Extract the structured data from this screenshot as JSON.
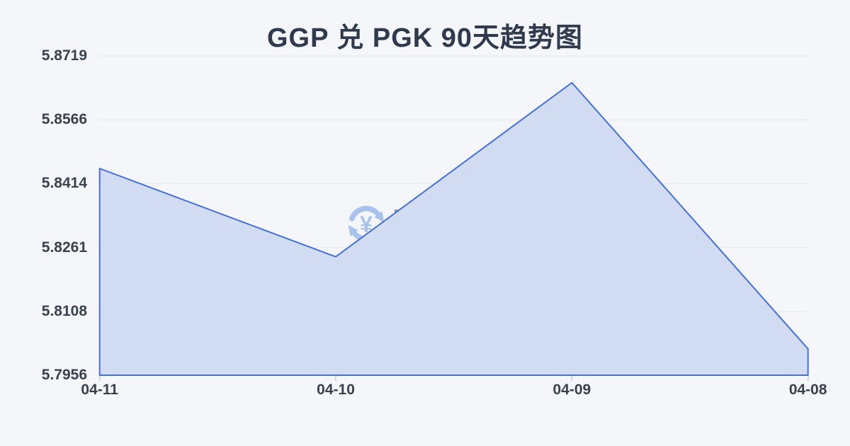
{
  "page": {
    "background_color": "#f4f6f9"
  },
  "chart_data": {
    "type": "area",
    "title": "GGP 兑 PGK 90天趋势图",
    "categories": [
      "04-11",
      "04-10",
      "04-09",
      "04-08"
    ],
    "values": [
      5.845,
      5.8239,
      5.8655,
      5.8019
    ],
    "yticks": [
      5.8719,
      5.8566,
      5.8414,
      5.8261,
      5.8108,
      5.7956
    ],
    "ytick_labels": [
      "5.8719",
      "5.8566",
      "5.8414",
      "5.8261",
      "5.8108",
      "5.7956"
    ],
    "ylim": [
      5.7956,
      5.8719
    ],
    "xlabel": "",
    "ylabel": "",
    "grid": true,
    "legend_position": "none",
    "colors": {
      "line": "#4671d5",
      "fill": "#d1dbf2",
      "grid": "#e4e7ec",
      "tick": "#c9cdd4",
      "axis_label": "#39414f",
      "title": "#303a4d"
    }
  },
  "watermark": {
    "text": "查外汇",
    "yuan_symbol": "¥",
    "text_color": "#8b909b",
    "icon_color": "#a9c2ec"
  }
}
